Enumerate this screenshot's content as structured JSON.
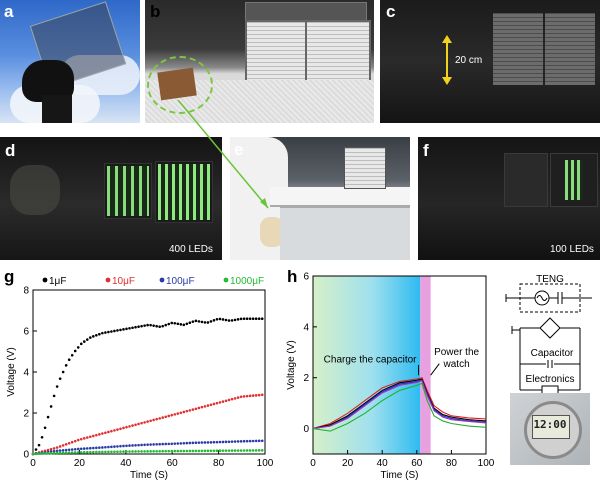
{
  "panels": {
    "a": {
      "label": "a"
    },
    "b": {
      "label": "b"
    },
    "c": {
      "label": "c",
      "distance_label": "20 cm"
    },
    "d": {
      "label": "d",
      "caption": "400 LEDs"
    },
    "e": {
      "label": "e"
    },
    "f": {
      "label": "f",
      "caption": "100 LEDs"
    },
    "g": {
      "label": "g"
    },
    "h": {
      "label": "h"
    }
  },
  "circuit": {
    "teng_label": "TENG",
    "capacitor_label": "Capacitor",
    "electronics_label": "Electronics",
    "watch_display": "12:00"
  },
  "chart_data": [
    {
      "panel": "g",
      "type": "scatter",
      "xlabel": "Time (S)",
      "ylabel": "Voltage (V)",
      "xlim": [
        0,
        100
      ],
      "ylim": [
        0,
        8
      ],
      "x_ticks": [
        0,
        20,
        40,
        60,
        80,
        100
      ],
      "y_ticks": [
        0,
        2,
        4,
        6,
        8
      ],
      "legend_placement": "top",
      "series": [
        {
          "name": "1μF",
          "color": "#000000",
          "x": [
            0,
            3,
            5,
            7,
            9,
            11,
            13,
            15,
            18,
            21,
            25,
            30,
            35,
            40,
            45,
            50,
            55,
            60,
            65,
            70,
            75,
            80,
            85,
            90,
            95,
            100
          ],
          "y": [
            0.0,
            0.5,
            1.2,
            2.0,
            2.8,
            3.5,
            4.0,
            4.5,
            5.0,
            5.4,
            5.7,
            5.9,
            6.0,
            6.1,
            6.2,
            6.3,
            6.2,
            6.4,
            6.3,
            6.5,
            6.4,
            6.6,
            6.5,
            6.6,
            6.6,
            6.6
          ]
        },
        {
          "name": "10μF",
          "color": "#e03030",
          "x": [
            0,
            10,
            20,
            30,
            40,
            50,
            60,
            70,
            80,
            90,
            100
          ],
          "y": [
            0.0,
            0.3,
            0.7,
            1.0,
            1.3,
            1.6,
            1.9,
            2.2,
            2.5,
            2.8,
            2.9
          ]
        },
        {
          "name": "100μF",
          "color": "#2a3aa8",
          "x": [
            0,
            10,
            20,
            30,
            40,
            50,
            60,
            70,
            80,
            90,
            100
          ],
          "y": [
            0.0,
            0.15,
            0.25,
            0.32,
            0.4,
            0.46,
            0.5,
            0.55,
            0.58,
            0.62,
            0.65
          ]
        },
        {
          "name": "1000μF",
          "color": "#22bb33",
          "x": [
            0,
            10,
            20,
            30,
            40,
            50,
            60,
            70,
            80,
            90,
            100
          ],
          "y": [
            0.0,
            0.05,
            0.08,
            0.1,
            0.12,
            0.13,
            0.14,
            0.15,
            0.16,
            0.17,
            0.18
          ]
        }
      ]
    },
    {
      "panel": "h",
      "type": "line",
      "xlabel": "Time (S)",
      "ylabel": "Voltage (V)",
      "xlim": [
        0,
        100
      ],
      "ylim": [
        -1,
        6
      ],
      "x_ticks": [
        0,
        20,
        40,
        60,
        80,
        100
      ],
      "y_ticks": [
        0,
        2,
        4,
        6
      ],
      "annotations": [
        "Charge the capacitor",
        "Power the watch"
      ],
      "shaded_regions": [
        {
          "x": [
            0,
            62
          ],
          "color": "gradient green-to-blue"
        },
        {
          "x": [
            62,
            68
          ],
          "color": "#e8a0e0"
        }
      ],
      "series": [
        {
          "color": "#e02020",
          "x": [
            0,
            10,
            20,
            30,
            40,
            50,
            60,
            63,
            66,
            70,
            75,
            80,
            90,
            100
          ],
          "y": [
            0.0,
            0.2,
            0.6,
            1.1,
            1.6,
            1.85,
            1.95,
            2.0,
            1.5,
            0.9,
            0.65,
            0.5,
            0.42,
            0.38
          ]
        },
        {
          "color": "#000000",
          "x": [
            0,
            10,
            20,
            30,
            40,
            50,
            60,
            63,
            66,
            70,
            75,
            80,
            90,
            100
          ],
          "y": [
            0.0,
            0.15,
            0.5,
            1.0,
            1.5,
            1.8,
            1.9,
            1.95,
            1.4,
            0.8,
            0.55,
            0.45,
            0.35,
            0.3
          ]
        },
        {
          "color": "#2030c0",
          "x": [
            0,
            10,
            20,
            30,
            40,
            50,
            60,
            63,
            66,
            70,
            75,
            80,
            90,
            100
          ],
          "y": [
            0.0,
            0.1,
            0.45,
            0.95,
            1.45,
            1.75,
            1.85,
            1.9,
            1.35,
            0.75,
            0.5,
            0.4,
            0.3,
            0.25
          ]
        },
        {
          "color": "#a030c0",
          "x": [
            0,
            10,
            20,
            30,
            40,
            50,
            60,
            63,
            66,
            70,
            75,
            80,
            90,
            100
          ],
          "y": [
            0.0,
            0.1,
            0.4,
            0.9,
            1.4,
            1.7,
            1.82,
            1.88,
            1.3,
            0.7,
            0.45,
            0.35,
            0.28,
            0.22
          ]
        },
        {
          "color": "#20b030",
          "x": [
            0,
            10,
            20,
            30,
            40,
            50,
            60,
            63,
            66,
            70,
            75,
            80,
            90,
            100
          ],
          "y": [
            0.0,
            -0.1,
            0.2,
            0.6,
            1.1,
            1.5,
            1.7,
            1.78,
            1.1,
            0.5,
            0.3,
            0.2,
            0.1,
            0.05
          ]
        }
      ]
    }
  ]
}
